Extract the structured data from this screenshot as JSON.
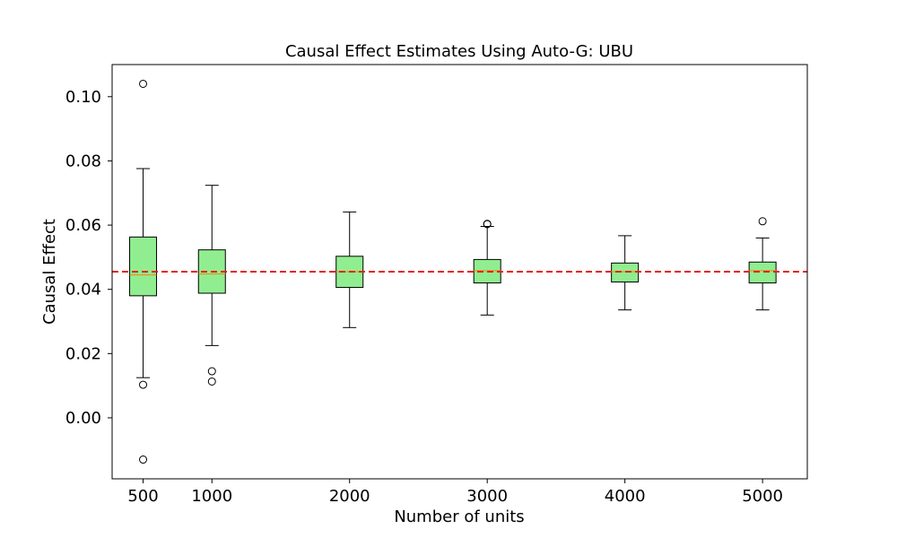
{
  "chart_data": {
    "type": "box",
    "title": "Causal Effect Estimates Using Auto-G: UBU",
    "xlabel": "Number of units",
    "ylabel": "Causal Effect",
    "xlim": [
      275,
      5325
    ],
    "ylim": [
      -0.019,
      0.11
    ],
    "yticks": [
      "0.00",
      "0.02",
      "0.04",
      "0.06",
      "0.08",
      "0.10"
    ],
    "ytick_values": [
      0.0,
      0.02,
      0.04,
      0.06,
      0.08,
      0.1
    ],
    "xticks": [
      "500",
      "1000",
      "2000",
      "3000",
      "4000",
      "5000"
    ],
    "reference_line": {
      "value": 0.0455,
      "style": "dashed",
      "color": "#e8201a"
    },
    "box_color": "#90ee90",
    "median_color": "#ff7f0e",
    "grid": false,
    "boxes": [
      {
        "x": 500,
        "whisker_low": 0.0125,
        "q1": 0.038,
        "median": 0.0445,
        "q3": 0.0563,
        "whisker_high": 0.0776,
        "outliers": [
          0.104,
          0.0103,
          -0.013
        ]
      },
      {
        "x": 1000,
        "whisker_low": 0.0225,
        "q1": 0.0388,
        "median": 0.0448,
        "q3": 0.0523,
        "whisker_high": 0.0724,
        "outliers": [
          0.0145,
          0.0113
        ]
      },
      {
        "x": 2000,
        "whisker_low": 0.0281,
        "q1": 0.0406,
        "median": 0.0455,
        "q3": 0.0503,
        "whisker_high": 0.0641,
        "outliers": []
      },
      {
        "x": 3000,
        "whisker_low": 0.032,
        "q1": 0.042,
        "median": 0.0458,
        "q3": 0.0493,
        "whisker_high": 0.0596,
        "outliers": [
          0.0604,
          0.0603
        ]
      },
      {
        "x": 4000,
        "whisker_low": 0.0336,
        "q1": 0.0423,
        "median": 0.0455,
        "q3": 0.0482,
        "whisker_high": 0.0567,
        "outliers": []
      },
      {
        "x": 5000,
        "whisker_low": 0.0336,
        "q1": 0.042,
        "median": 0.0458,
        "q3": 0.0485,
        "whisker_high": 0.056,
        "outliers": [
          0.0612
        ]
      }
    ]
  }
}
